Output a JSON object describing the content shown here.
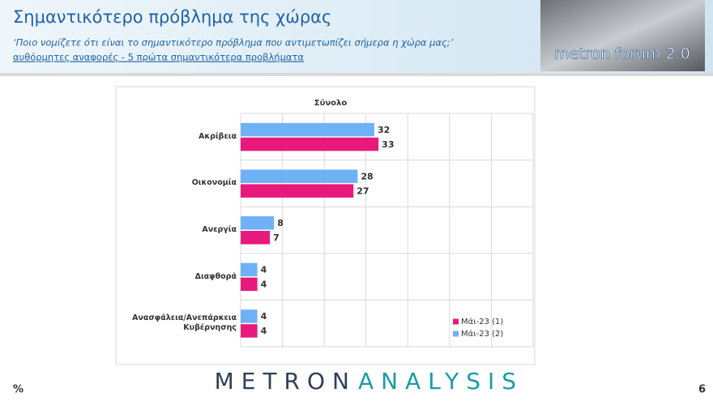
{
  "header": {
    "title": "Σημαντικότερο πρόβλημα της χώρας",
    "subtitle": "‘Ποιο νομίζετε ότι  είναι το σημαντικότερο πρόβλημα που αντιμετωπίζει σήμερα η χώρα μας;’",
    "note": "αυθόρμητες αναφορές - 5 πρώτα σημαντικότερα προβλήματα",
    "logo": "metron forum 2.0"
  },
  "chart_data": {
    "type": "bar",
    "orientation": "horizontal",
    "title": "Σύνολο",
    "categories": [
      "Ακρίβεια",
      "Οικονομία",
      "Ανεργία",
      "Διαφθορά",
      "Ανασφάλεια/Ανεπάρκεια Κυβέρνησης"
    ],
    "series": [
      {
        "name": "Μάι-23 (1)",
        "color": "#e8197d",
        "values": [
          33,
          27,
          7,
          4,
          4
        ]
      },
      {
        "name": "Μάι-23 (2)",
        "color": "#6fb1f7",
        "values": [
          32,
          28,
          8,
          4,
          4
        ]
      }
    ],
    "xlim": [
      0,
      70
    ],
    "xticks": [
      0,
      10,
      20,
      30,
      40,
      50,
      60,
      70
    ],
    "grid": true,
    "legend": "lower right"
  },
  "footer": {
    "unit": "%",
    "brand_left": "METRON",
    "brand_right": "ANALYSIS",
    "page": "6"
  }
}
